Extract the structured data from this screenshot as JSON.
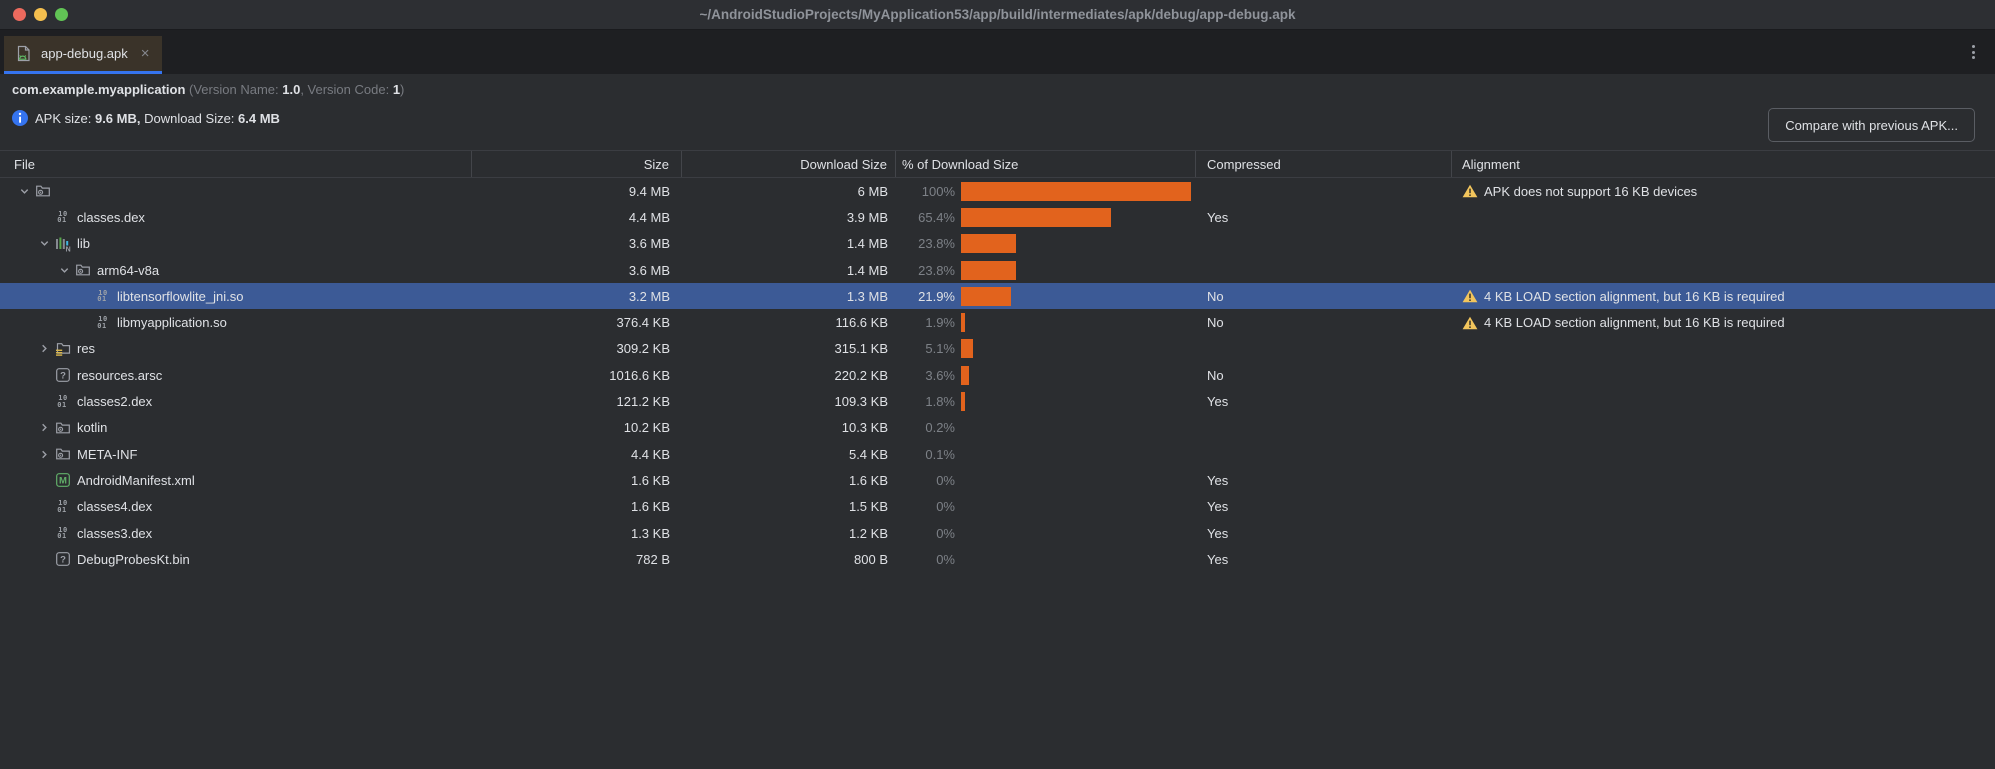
{
  "window": {
    "title": "~/AndroidStudioProjects/MyApplication53/app/build/intermediates/apk/debug/app-debug.apk"
  },
  "tab": {
    "label": "app-debug.apk",
    "close_glyph": "×"
  },
  "apk_info": {
    "package": "com.example.myapplication",
    "version_name_prefix": " (Version Name: ",
    "version_name": "1.0",
    "version_code_prefix": ", Version Code: ",
    "version_code": "1",
    "suffix": ")",
    "size_prefix": "APK size: ",
    "apk_size": "9.6 MB,",
    "download_prefix": " Download Size: ",
    "download_size": "6.4 MB",
    "compare_button_label": "Compare with previous APK..."
  },
  "table": {
    "columns": [
      "File",
      "Size",
      "Download Size",
      "% of Download Size",
      "Compressed",
      "Alignment"
    ],
    "rows": [
      {
        "name": "",
        "icon": "folder-icon",
        "level": 0,
        "chevron": "down",
        "size": "9.4 MB",
        "download": "6 MB",
        "pct": "100%",
        "pct_value": 100,
        "compressed": "",
        "alignment": "APK does not support 16 KB devices",
        "selected": false
      },
      {
        "name": "classes.dex",
        "icon": "dex-file-icon",
        "level": 1,
        "chevron": null,
        "size": "4.4 MB",
        "download": "3.9 MB",
        "pct": "65.4%",
        "pct_value": 65.4,
        "compressed": "Yes",
        "alignment": "",
        "selected": false
      },
      {
        "name": "lib",
        "icon": "native-libs-icon",
        "level": 1,
        "chevron": "down",
        "size": "3.6 MB",
        "download": "1.4 MB",
        "pct": "23.8%",
        "pct_value": 23.8,
        "compressed": "",
        "alignment": "",
        "selected": false
      },
      {
        "name": "arm64-v8a",
        "icon": "folder-icon",
        "level": 2,
        "chevron": "down",
        "size": "3.6 MB",
        "download": "1.4 MB",
        "pct": "23.8%",
        "pct_value": 23.8,
        "compressed": "",
        "alignment": "",
        "selected": false
      },
      {
        "name": "libtensorflowlite_jni.so",
        "icon": "dex-file-icon",
        "level": 3,
        "chevron": null,
        "size": "3.2 MB",
        "download": "1.3 MB",
        "pct": "21.9%",
        "pct_value": 21.9,
        "compressed": "No",
        "alignment": "4 KB LOAD section alignment, but 16 KB is required",
        "selected": true
      },
      {
        "name": "libmyapplication.so",
        "icon": "dex-file-icon",
        "level": 3,
        "chevron": null,
        "size": "376.4 KB",
        "download": "116.6 KB",
        "pct": "1.9%",
        "pct_value": 1.9,
        "compressed": "No",
        "alignment": "4 KB LOAD section alignment, but 16 KB is required",
        "selected": false
      },
      {
        "name": "res",
        "icon": "res-folder-icon",
        "level": 1,
        "chevron": "right",
        "size": "309.2 KB",
        "download": "315.1 KB",
        "pct": "5.1%",
        "pct_value": 5.1,
        "compressed": "",
        "alignment": "",
        "selected": false
      },
      {
        "name": "resources.arsc",
        "icon": "unknown-file-icon",
        "level": 1,
        "chevron": null,
        "size": "1016.6 KB",
        "download": "220.2 KB",
        "pct": "3.6%",
        "pct_value": 3.6,
        "compressed": "No",
        "alignment": "",
        "selected": false
      },
      {
        "name": "classes2.dex",
        "icon": "dex-file-icon",
        "level": 1,
        "chevron": null,
        "size": "121.2 KB",
        "download": "109.3 KB",
        "pct": "1.8%",
        "pct_value": 1.8,
        "compressed": "Yes",
        "alignment": "",
        "selected": false
      },
      {
        "name": "kotlin",
        "icon": "folder-icon",
        "level": 1,
        "chevron": "right",
        "size": "10.2 KB",
        "download": "10.3 KB",
        "pct": "0.2%",
        "pct_value": 0.2,
        "compressed": "",
        "alignment": "",
        "selected": false
      },
      {
        "name": "META-INF",
        "icon": "folder-icon",
        "level": 1,
        "chevron": "right",
        "size": "4.4 KB",
        "download": "5.4 KB",
        "pct": "0.1%",
        "pct_value": 0.1,
        "compressed": "",
        "alignment": "",
        "selected": false
      },
      {
        "name": "AndroidManifest.xml",
        "icon": "manifest-file-icon",
        "level": 1,
        "chevron": null,
        "size": "1.6 KB",
        "download": "1.6 KB",
        "pct": "0%",
        "pct_value": 0,
        "compressed": "Yes",
        "alignment": "",
        "selected": false
      },
      {
        "name": "classes4.dex",
        "icon": "dex-file-icon",
        "level": 1,
        "chevron": null,
        "size": "1.6 KB",
        "download": "1.5 KB",
        "pct": "0%",
        "pct_value": 0,
        "compressed": "Yes",
        "alignment": "",
        "selected": false
      },
      {
        "name": "classes3.dex",
        "icon": "dex-file-icon",
        "level": 1,
        "chevron": null,
        "size": "1.3 KB",
        "download": "1.2 KB",
        "pct": "0%",
        "pct_value": 0,
        "compressed": "Yes",
        "alignment": "",
        "selected": false
      },
      {
        "name": "DebugProbesKt.bin",
        "icon": "unknown-file-icon",
        "level": 1,
        "chevron": null,
        "size": "782 B",
        "download": "800 B",
        "pct": "0%",
        "pct_value": 0,
        "compressed": "Yes",
        "alignment": "",
        "selected": false
      }
    ]
  },
  "colors": {
    "bar_orange": "#e2631d",
    "selection_blue": "#3c5a96",
    "tab_underline_blue": "#3574f0",
    "warning_yellow": "#f2c55c",
    "info_blue": "#3574f0",
    "manifest_green": "#62b069",
    "traffic_red": "#ec6a5e",
    "traffic_yellow": "#f4bf4e",
    "traffic_green": "#61c455"
  }
}
